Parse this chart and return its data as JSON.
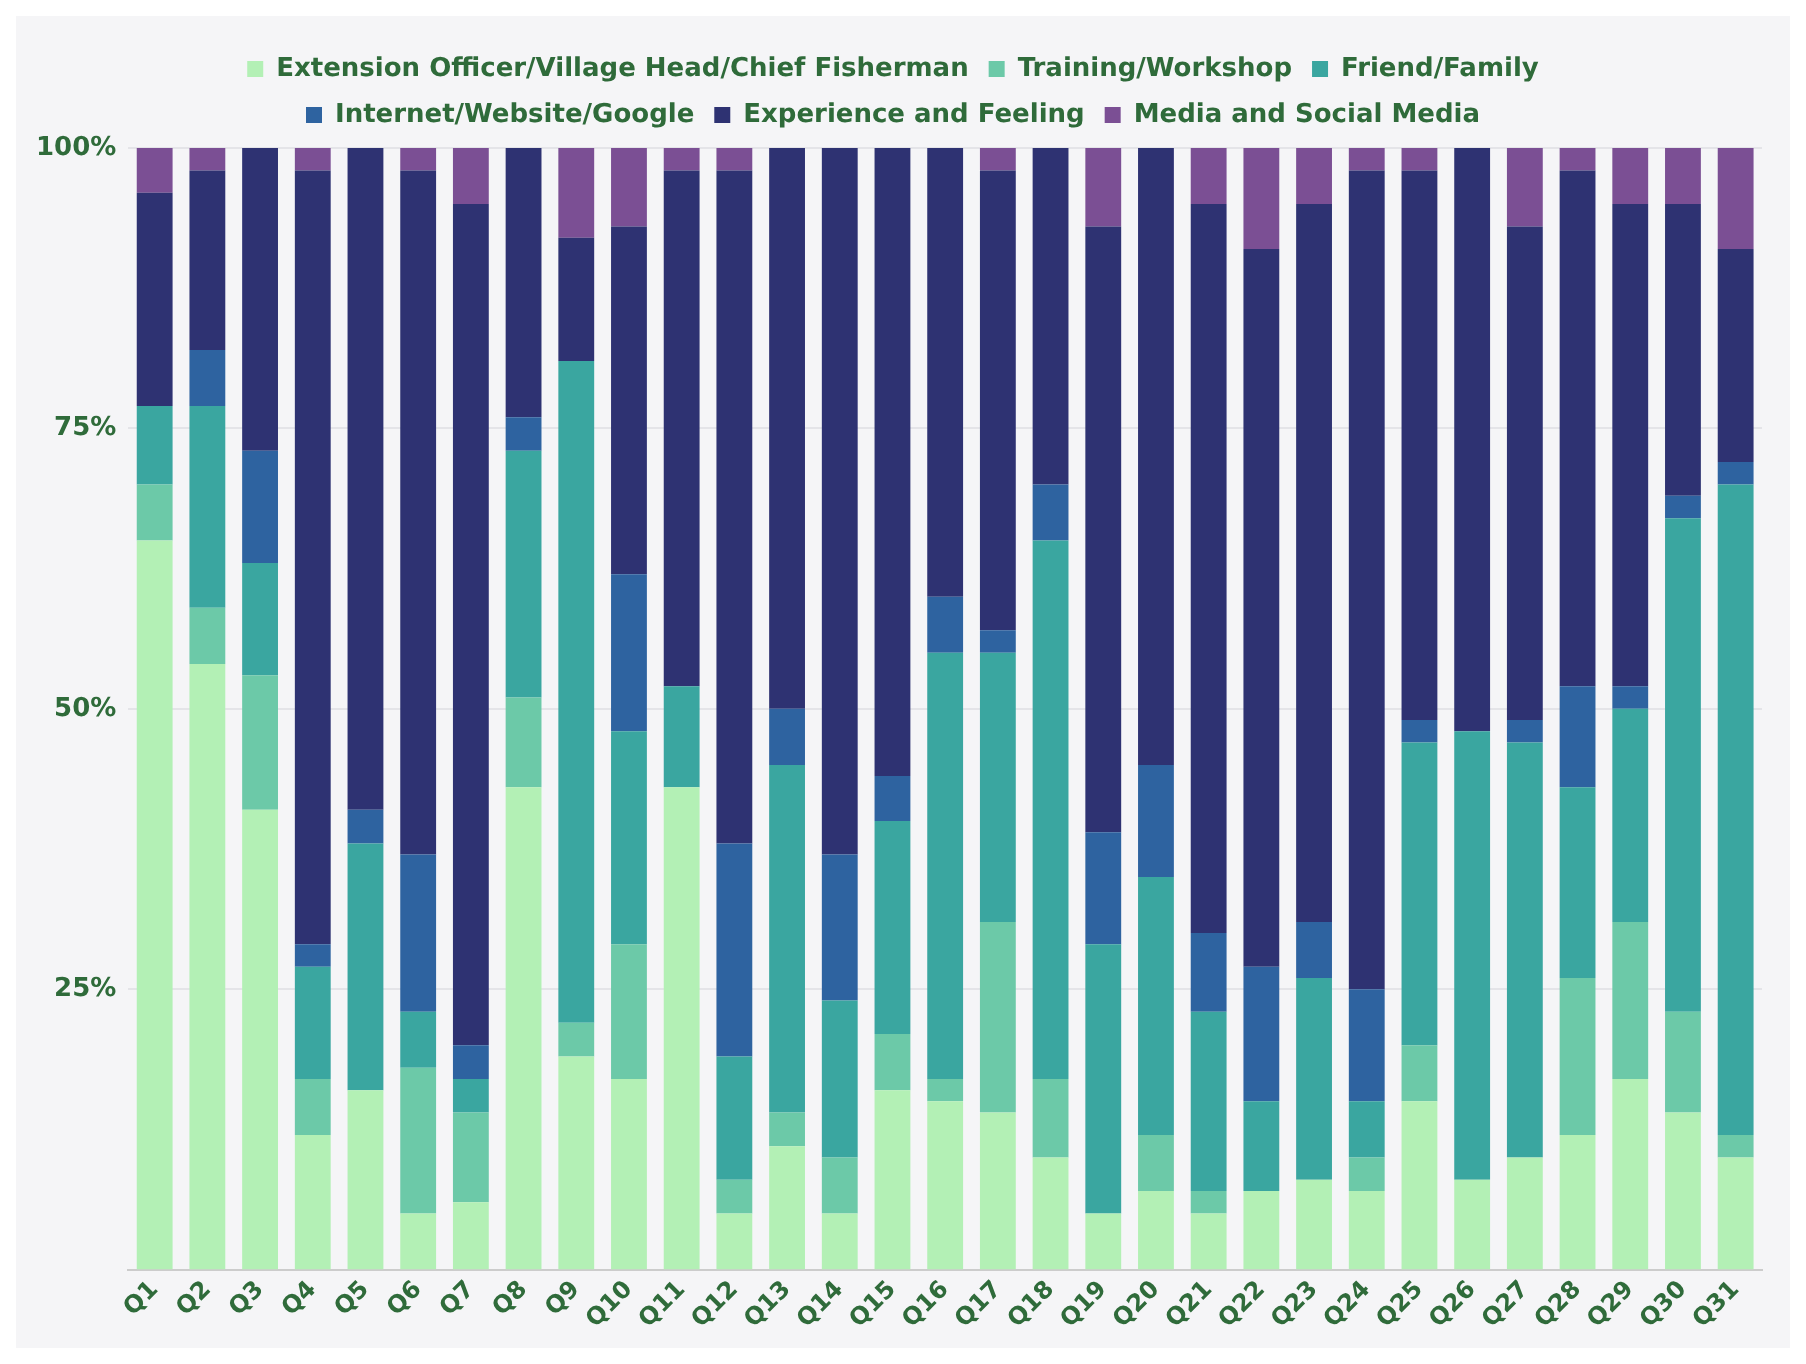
{
  "chart_data": {
    "type": "bar",
    "stacked": true,
    "categories": [
      "Q1",
      "Q2",
      "Q3",
      "Q4",
      "Q5",
      "Q6",
      "Q7",
      "Q8",
      "Q9",
      "Q10",
      "Q11",
      "Q12",
      "Q13",
      "Q14",
      "Q15",
      "Q16",
      "Q17",
      "Q18",
      "Q19",
      "Q20",
      "Q21",
      "Q22",
      "Q23",
      "Q24",
      "Q25",
      "Q26",
      "Q27",
      "Q28",
      "Q29",
      "Q30",
      "Q31"
    ],
    "series": [
      {
        "name": "Extension Officer/Village Head/Chief Fisherman",
        "color": "#b3f0b5",
        "values": [
          65,
          54,
          41,
          12,
          16,
          5,
          6,
          43,
          19,
          17,
          43,
          5,
          11,
          5,
          16,
          15,
          14,
          10,
          5,
          7,
          5,
          7,
          8,
          7,
          15,
          8,
          10,
          12,
          17,
          14,
          10
        ]
      },
      {
        "name": "Training/Workshop",
        "color": "#6cc9a8",
        "values": [
          5,
          5,
          12,
          5,
          0,
          13,
          8,
          8,
          3,
          12,
          0,
          3,
          3,
          5,
          5,
          2,
          17,
          7,
          0,
          5,
          2,
          0,
          0,
          3,
          5,
          0,
          0,
          14,
          14,
          9,
          2
        ]
      },
      {
        "name": "Friend/Family",
        "color": "#3aa6a0",
        "values": [
          7,
          18,
          10,
          10,
          22,
          5,
          3,
          22,
          59,
          19,
          9,
          11,
          31,
          14,
          19,
          38,
          24,
          48,
          24,
          23,
          16,
          8,
          18,
          5,
          27,
          40,
          37,
          17,
          19,
          44,
          58
        ]
      },
      {
        "name": "Internet/Website/Google",
        "color": "#2e63a0",
        "values": [
          0,
          5,
          10,
          2,
          3,
          14,
          3,
          3,
          0,
          14,
          0,
          19,
          5,
          13,
          4,
          5,
          2,
          5,
          10,
          10,
          7,
          12,
          5,
          10,
          2,
          0,
          2,
          9,
          2,
          2,
          2
        ]
      },
      {
        "name": "Experience and Feeling",
        "color": "#2e3272",
        "values": [
          19,
          16,
          27,
          69,
          59,
          61,
          75,
          24,
          11,
          31,
          46,
          60,
          50,
          63,
          56,
          40,
          41,
          30,
          54,
          55,
          65,
          64,
          64,
          73,
          49,
          52,
          44,
          46,
          43,
          26,
          19
        ]
      },
      {
        "name": "Media and Social Media",
        "color": "#7b4f94",
        "values": [
          4,
          2,
          0,
          2,
          0,
          2,
          5,
          0,
          8,
          7,
          2,
          2,
          0,
          0,
          0,
          0,
          2,
          0,
          7,
          0,
          5,
          9,
          5,
          2,
          2,
          0,
          7,
          2,
          5,
          5,
          9
        ]
      }
    ],
    "ylim": [
      0,
      100
    ],
    "yticks": [
      {
        "value": 25,
        "label": "25%"
      },
      {
        "value": 50,
        "label": "50%"
      },
      {
        "value": 75,
        "label": "75%"
      },
      {
        "value": 100,
        "label": "100%"
      }
    ],
    "grid": "y",
    "legend": "top"
  }
}
